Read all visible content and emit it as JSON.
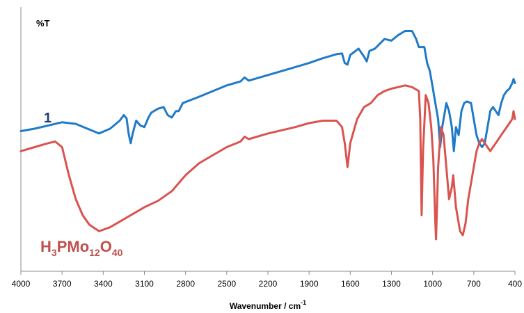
{
  "colors": {
    "series_blue": "#1f7ac8",
    "series_red": "#d9534f",
    "label_1": "#1f3b73",
    "label_pmo": "#c0504d",
    "axis": "#8c8c8c"
  },
  "chart_data": {
    "type": "line",
    "xlabel_main": "Wavenumber / cm",
    "xlabel_sup": "-1",
    "ylabel": "%T",
    "xlim": [
      4000,
      400
    ],
    "x_reversed": true,
    "x_ticks": [
      "4000",
      "3700",
      "3400",
      "3100",
      "2800",
      "2500",
      "2200",
      "1900",
      "1600",
      "1300",
      "1000",
      "700",
      "400"
    ],
    "grid": false,
    "series": [
      {
        "name": "1",
        "color": "#1f7ac8",
        "points": [
          [
            4000,
            75
          ],
          [
            3900,
            78
          ],
          [
            3800,
            82
          ],
          [
            3750,
            84
          ],
          [
            3700,
            86
          ],
          [
            3600,
            84
          ],
          [
            3500,
            77
          ],
          [
            3430,
            72
          ],
          [
            3350,
            78
          ],
          [
            3280,
            88
          ],
          [
            3250,
            95
          ],
          [
            3230,
            91
          ],
          [
            3215,
            72
          ],
          [
            3200,
            60
          ],
          [
            3185,
            72
          ],
          [
            3160,
            88
          ],
          [
            3130,
            82
          ],
          [
            3100,
            80
          ],
          [
            3070,
            92
          ],
          [
            3050,
            98
          ],
          [
            3000,
            103
          ],
          [
            2960,
            105
          ],
          [
            2930,
            95
          ],
          [
            2900,
            92
          ],
          [
            2870,
            100
          ],
          [
            2850,
            100
          ],
          [
            2820,
            110
          ],
          [
            2700,
            118
          ],
          [
            2600,
            125
          ],
          [
            2500,
            132
          ],
          [
            2400,
            137
          ],
          [
            2370,
            142
          ],
          [
            2340,
            138
          ],
          [
            2200,
            145
          ],
          [
            2000,
            155
          ],
          [
            1900,
            160
          ],
          [
            1800,
            166
          ],
          [
            1700,
            171
          ],
          [
            1660,
            172
          ],
          [
            1640,
            160
          ],
          [
            1620,
            158
          ],
          [
            1600,
            170
          ],
          [
            1540,
            178
          ],
          [
            1500,
            168
          ],
          [
            1480,
            162
          ],
          [
            1460,
            175
          ],
          [
            1420,
            178
          ],
          [
            1350,
            190
          ],
          [
            1300,
            188
          ],
          [
            1250,
            195
          ],
          [
            1200,
            200
          ],
          [
            1150,
            200
          ],
          [
            1120,
            190
          ],
          [
            1100,
            180
          ],
          [
            1080,
            180
          ],
          [
            1060,
            180
          ],
          [
            1040,
            160
          ],
          [
            1020,
            150
          ],
          [
            1000,
            130
          ],
          [
            980,
            110
          ],
          [
            960,
            90
          ],
          [
            945,
            55
          ],
          [
            930,
            80
          ],
          [
            900,
            110
          ],
          [
            880,
            100
          ],
          [
            860,
            80
          ],
          [
            845,
            50
          ],
          [
            830,
            80
          ],
          [
            810,
            70
          ],
          [
            790,
            100
          ],
          [
            770,
            110
          ],
          [
            750,
            112
          ],
          [
            720,
            110
          ],
          [
            700,
            90
          ],
          [
            680,
            70
          ],
          [
            660,
            60
          ],
          [
            640,
            55
          ],
          [
            620,
            60
          ],
          [
            600,
            80
          ],
          [
            580,
            100
          ],
          [
            560,
            105
          ],
          [
            540,
            100
          ],
          [
            520,
            95
          ],
          [
            500,
            110
          ],
          [
            480,
            120
          ],
          [
            460,
            125
          ],
          [
            440,
            128
          ],
          [
            420,
            135
          ],
          [
            410,
            140
          ],
          [
            400,
            135
          ]
        ]
      },
      {
        "name": "H3PMo12O40",
        "color": "#d9534f",
        "points": [
          [
            4000,
            50
          ],
          [
            3900,
            55
          ],
          [
            3800,
            60
          ],
          [
            3750,
            62
          ],
          [
            3700,
            55
          ],
          [
            3650,
            20
          ],
          [
            3600,
            -10
          ],
          [
            3550,
            -30
          ],
          [
            3500,
            -42
          ],
          [
            3430,
            -50
          ],
          [
            3350,
            -45
          ],
          [
            3250,
            -35
          ],
          [
            3100,
            -20
          ],
          [
            3000,
            -12
          ],
          [
            2900,
            0
          ],
          [
            2800,
            20
          ],
          [
            2700,
            35
          ],
          [
            2600,
            45
          ],
          [
            2500,
            55
          ],
          [
            2400,
            62
          ],
          [
            2370,
            68
          ],
          [
            2340,
            65
          ],
          [
            2200,
            72
          ],
          [
            2000,
            80
          ],
          [
            1900,
            85
          ],
          [
            1800,
            88
          ],
          [
            1700,
            88
          ],
          [
            1660,
            80
          ],
          [
            1640,
            60
          ],
          [
            1620,
            30
          ],
          [
            1600,
            60
          ],
          [
            1550,
            90
          ],
          [
            1500,
            105
          ],
          [
            1450,
            110
          ],
          [
            1400,
            120
          ],
          [
            1350,
            125
          ],
          [
            1300,
            128
          ],
          [
            1250,
            130
          ],
          [
            1200,
            132
          ],
          [
            1150,
            130
          ],
          [
            1100,
            125
          ],
          [
            1090,
            90
          ],
          [
            1080,
            -30
          ],
          [
            1070,
            50
          ],
          [
            1050,
            120
          ],
          [
            1030,
            110
          ],
          [
            1010,
            80
          ],
          [
            995,
            40
          ],
          [
            980,
            -40
          ],
          [
            975,
            -60
          ],
          [
            960,
            30
          ],
          [
            940,
            80
          ],
          [
            920,
            70
          ],
          [
            900,
            30
          ],
          [
            880,
            -10
          ],
          [
            860,
            5
          ],
          [
            850,
            20
          ],
          [
            830,
            -20
          ],
          [
            820,
            -30
          ],
          [
            800,
            -50
          ],
          [
            780,
            -55
          ],
          [
            760,
            -40
          ],
          [
            740,
            -10
          ],
          [
            720,
            10
          ],
          [
            700,
            30
          ],
          [
            680,
            50
          ],
          [
            660,
            60
          ],
          [
            640,
            65
          ],
          [
            620,
            60
          ],
          [
            600,
            55
          ],
          [
            580,
            50
          ],
          [
            560,
            55
          ],
          [
            540,
            60
          ],
          [
            520,
            65
          ],
          [
            500,
            70
          ],
          [
            480,
            75
          ],
          [
            460,
            80
          ],
          [
            440,
            85
          ],
          [
            420,
            90
          ],
          [
            410,
            100
          ],
          [
            400,
            90
          ]
        ]
      }
    ]
  },
  "labels": {
    "label_1": "1",
    "pmo": {
      "p1": "H",
      "s1": "3",
      "p2": "PMo",
      "s2": "12",
      "p3": "O",
      "s3": "40"
    }
  }
}
